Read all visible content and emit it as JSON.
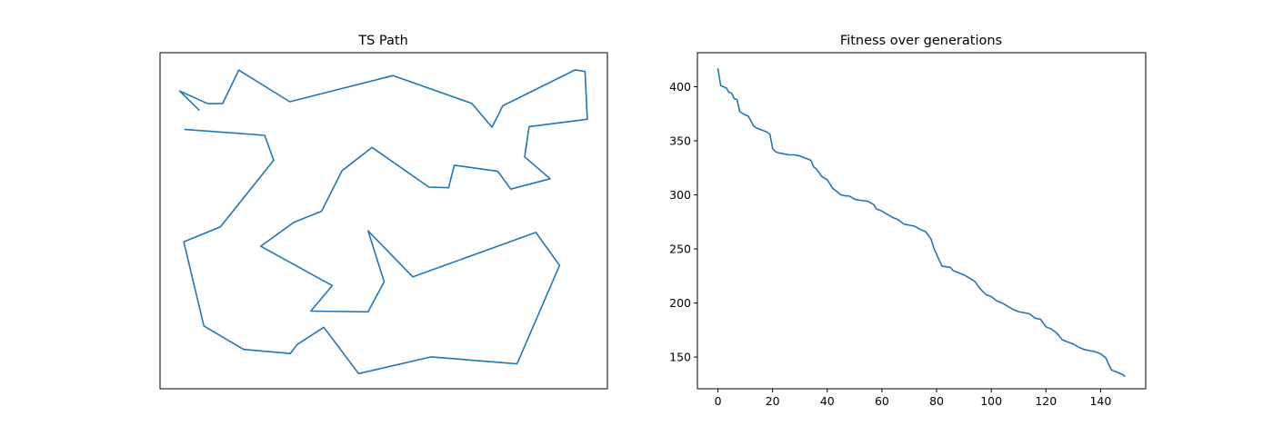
{
  "chart_data": [
    {
      "type": "line",
      "title": "TS Path",
      "xlabel": "",
      "ylabel": "",
      "axes_ticks": false,
      "grid": false,
      "color": "#1f77b4",
      "series": [
        {
          "points": [
            [
              0.088,
              0.828
            ],
            [
              0.044,
              0.886
            ],
            [
              0.107,
              0.848
            ],
            [
              0.14,
              0.849
            ],
            [
              0.176,
              0.948
            ],
            [
              0.29,
              0.854
            ],
            [
              0.521,
              0.932
            ],
            [
              0.697,
              0.849
            ],
            [
              0.742,
              0.778
            ],
            [
              0.766,
              0.842
            ],
            [
              0.928,
              0.949
            ],
            [
              0.95,
              0.944
            ],
            [
              0.955,
              0.802
            ],
            [
              0.825,
              0.78
            ],
            [
              0.815,
              0.69
            ],
            [
              0.872,
              0.625
            ],
            [
              0.784,
              0.594
            ],
            [
              0.755,
              0.647
            ],
            [
              0.658,
              0.665
            ],
            [
              0.645,
              0.598
            ],
            [
              0.601,
              0.6
            ],
            [
              0.474,
              0.718
            ],
            [
              0.407,
              0.649
            ],
            [
              0.361,
              0.528
            ],
            [
              0.299,
              0.495
            ],
            [
              0.225,
              0.424
            ],
            [
              0.385,
              0.307
            ],
            [
              0.337,
              0.231
            ],
            [
              0.465,
              0.229
            ],
            [
              0.501,
              0.318
            ],
            [
              0.465,
              0.47
            ],
            [
              0.565,
              0.333
            ],
            [
              0.84,
              0.465
            ],
            [
              0.893,
              0.367
            ],
            [
              0.798,
              0.074
            ],
            [
              0.606,
              0.095
            ],
            [
              0.444,
              0.045
            ],
            [
              0.366,
              0.183
            ],
            [
              0.307,
              0.132
            ],
            [
              0.291,
              0.105
            ],
            [
              0.187,
              0.117
            ],
            [
              0.098,
              0.187
            ],
            [
              0.053,
              0.437
            ],
            [
              0.135,
              0.482
            ],
            [
              0.254,
              0.68
            ],
            [
              0.234,
              0.754
            ],
            [
              0.054,
              0.772
            ]
          ]
        }
      ]
    },
    {
      "type": "line",
      "title": "Fitness over generations",
      "xlabel": "",
      "ylabel": "",
      "xlim": [
        -7.5,
        156.5
      ],
      "ylim": [
        120.7,
        431.5
      ],
      "xticks": [
        0,
        20,
        40,
        60,
        80,
        100,
        120,
        140
      ],
      "yticks": [
        150,
        200,
        250,
        300,
        350,
        400
      ],
      "grid": false,
      "legend": "none",
      "color": "#1f77b4",
      "series": [
        {
          "x": [
            0,
            1,
            2,
            3,
            4,
            5,
            6,
            7,
            8,
            10,
            11,
            12,
            13,
            14,
            15,
            17,
            18,
            19,
            20,
            21,
            22,
            24,
            26,
            28,
            30,
            32,
            34,
            35,
            36,
            38,
            40,
            42,
            43,
            45,
            47,
            48,
            50,
            52,
            55,
            57,
            58,
            60,
            62,
            64,
            66,
            68,
            70,
            72,
            74,
            76,
            78,
            79,
            80,
            82,
            85,
            86,
            88,
            90,
            92,
            94,
            96,
            98,
            100,
            102,
            104,
            106,
            108,
            110,
            112,
            114,
            116,
            118,
            120,
            122,
            124,
            126,
            128,
            130,
            132,
            134,
            136,
            138,
            140,
            142,
            143,
            144,
            146,
            148,
            149
          ],
          "y": [
            417,
            401,
            400,
            399,
            395,
            394,
            389,
            388,
            377,
            374,
            373,
            369,
            364,
            362,
            361,
            359,
            358,
            356,
            343,
            340,
            339,
            338,
            337,
            337,
            336,
            334,
            332,
            326,
            324,
            317,
            314,
            306,
            304,
            300,
            299,
            299,
            296,
            295,
            294,
            291,
            287,
            285,
            282,
            279,
            277,
            273,
            272,
            271,
            268,
            266,
            259,
            251,
            245,
            234,
            233,
            230,
            228,
            226,
            223,
            220,
            213,
            208,
            206,
            202,
            200,
            197,
            194,
            192,
            191,
            190,
            186,
            185,
            178,
            176,
            172,
            166,
            164,
            162,
            159,
            157,
            156,
            155,
            153,
            149,
            143,
            138,
            136,
            134,
            132
          ]
        }
      ]
    }
  ]
}
